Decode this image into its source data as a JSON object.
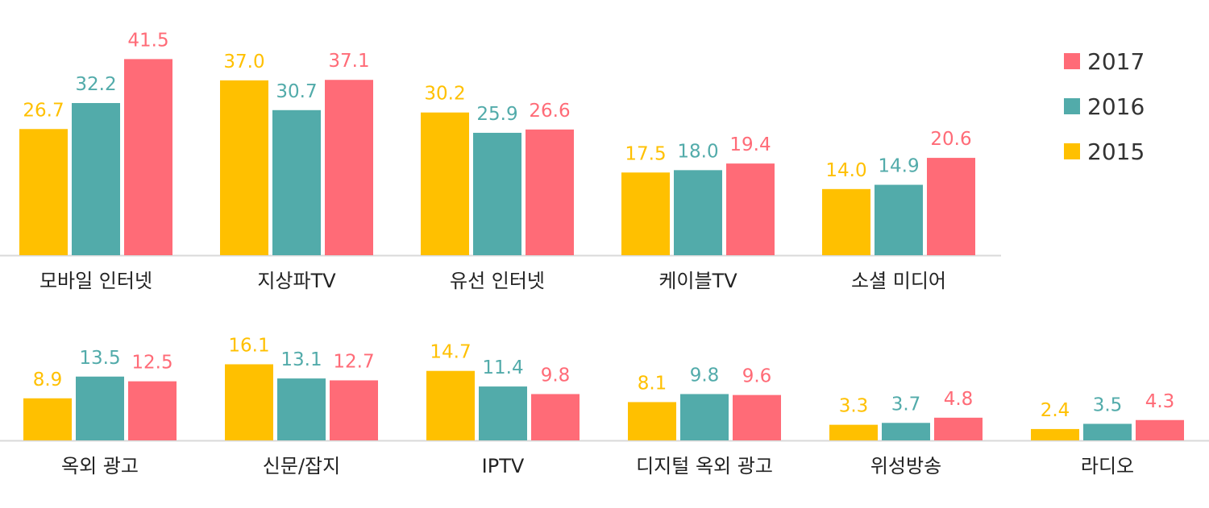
{
  "chart_data": [
    {
      "type": "bar",
      "categories": [
        "모바일 인터넷",
        "지상파TV",
        "유선 인터넷",
        "케이블TV",
        "소셜 미디어"
      ],
      "series": [
        {
          "name": "2015",
          "color": "#FFC000",
          "values": [
            26.7,
            37.0,
            30.2,
            17.5,
            14.0
          ]
        },
        {
          "name": "2016",
          "color": "#52ABAA",
          "values": [
            32.2,
            30.7,
            25.9,
            18.0,
            14.9
          ]
        },
        {
          "name": "2017",
          "color": "#FF6B77",
          "values": [
            41.5,
            37.1,
            26.6,
            19.4,
            20.6
          ]
        }
      ],
      "value_labels": true,
      "grid": false
    },
    {
      "type": "bar",
      "categories": [
        "옥외 광고",
        "신문/잡지",
        "IPTV",
        "디지털 옥외 광고",
        "위성방송",
        "라디오"
      ],
      "series": [
        {
          "name": "2015",
          "color": "#FFC000",
          "values": [
            8.9,
            16.1,
            14.7,
            8.1,
            3.3,
            2.4
          ]
        },
        {
          "name": "2016",
          "color": "#52ABAA",
          "values": [
            13.5,
            13.1,
            11.4,
            9.8,
            3.7,
            3.5
          ]
        },
        {
          "name": "2017",
          "color": "#FF6B77",
          "values": [
            12.5,
            12.7,
            9.8,
            9.6,
            4.8,
            4.3
          ]
        }
      ],
      "value_labels": true,
      "grid": false
    }
  ],
  "legend": {
    "placement": "top-right",
    "entries": [
      {
        "label": "2017",
        "color": "#FF6B77"
      },
      {
        "label": "2016",
        "color": "#52ABAA"
      },
      {
        "label": "2015",
        "color": "#FFC000"
      }
    ]
  },
  "colors": {
    "axis": "#D9D9D9",
    "category_text": "#222222"
  }
}
